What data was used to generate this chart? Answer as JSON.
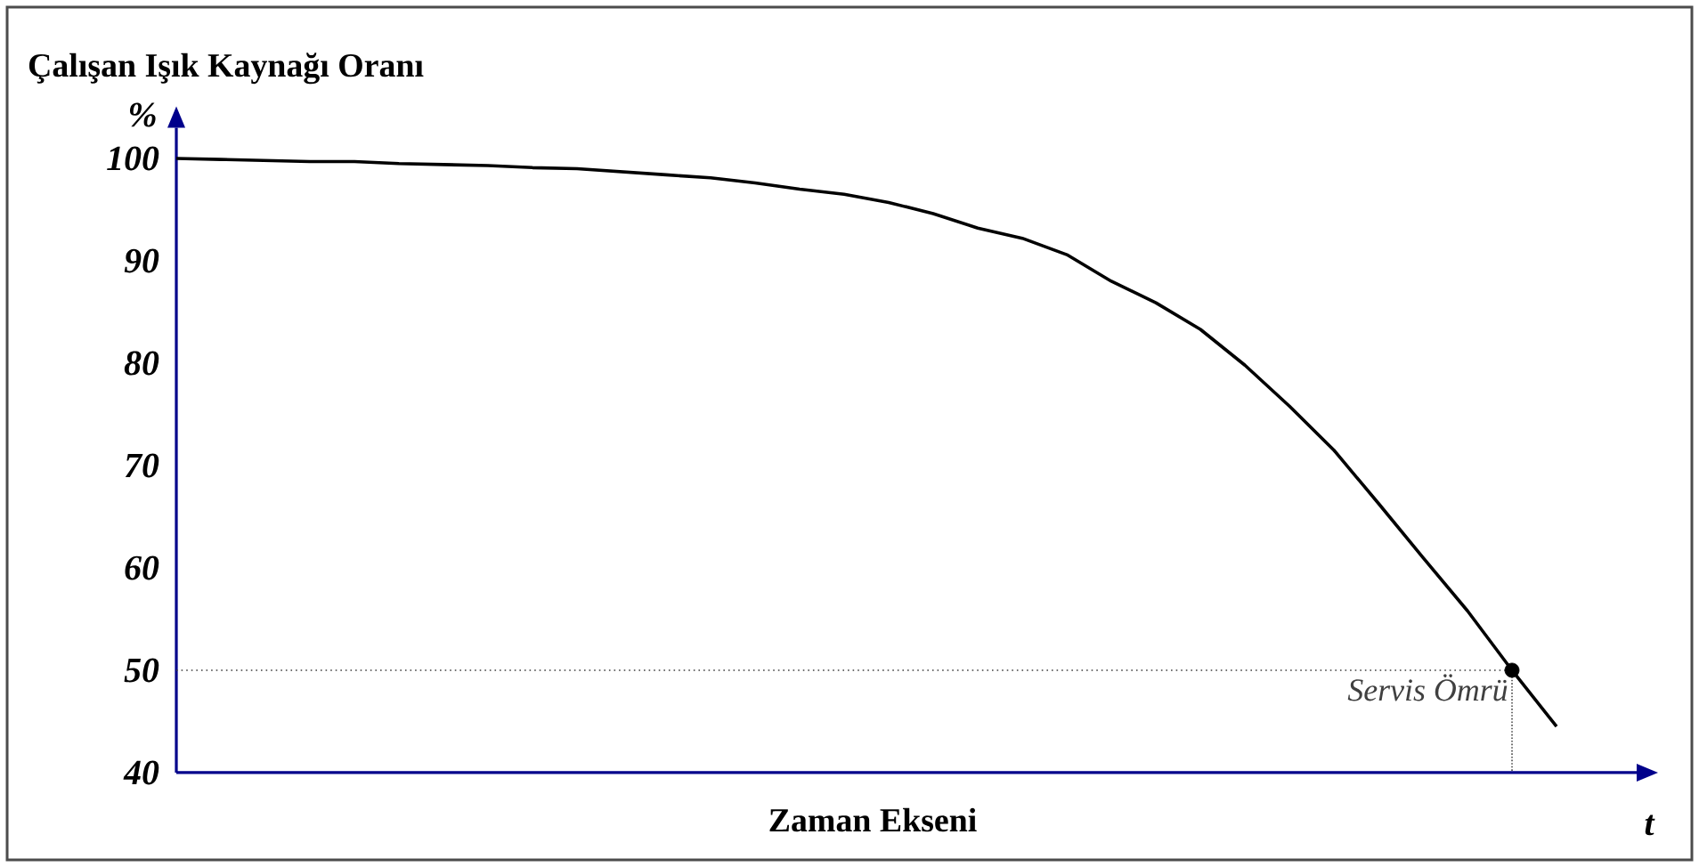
{
  "chart_data": {
    "type": "line",
    "ylabel": "Çalışan Işık Kaynağı Oranı",
    "xlabel": "Zaman Ekseni",
    "categories": [
      null,
      null,
      null,
      null,
      null,
      null,
      null,
      null,
      null,
      null,
      null,
      null,
      null,
      null,
      null,
      null,
      null,
      null,
      null,
      null,
      null,
      null,
      null,
      null,
      null,
      null,
      null,
      null,
      null,
      null,
      null,
      null
    ],
    "series": [
      {
        "color": "#000000",
        "values": [
          100,
          99.9,
          99.8,
          99.7,
          99.7,
          99.5,
          99.4,
          99.3,
          99.1,
          99.0,
          98.7,
          98.4,
          98.1,
          97.6,
          97.0,
          96.5,
          95.7,
          94.6,
          93.2,
          92.2,
          90.6,
          88.0,
          85.9,
          83.3,
          79.8,
          75.8,
          71.5,
          66.3,
          61.0,
          55.8,
          50,
          44.5
        ]
      }
    ],
    "ylim": [
      40,
      103
    ],
    "yticks": [
      40,
      50,
      60,
      70,
      80,
      90,
      100
    ],
    "ref_lines": [
      {
        "axis": "y",
        "value": 50,
        "line_style": "dotted",
        "color": "#404040"
      }
    ],
    "annotations": [
      "%",
      "t",
      {
        "text": "Servis Ömrü",
        "y": 50
      }
    ],
    "grid": false,
    "marker": "none",
    "line_style": "solid"
  }
}
